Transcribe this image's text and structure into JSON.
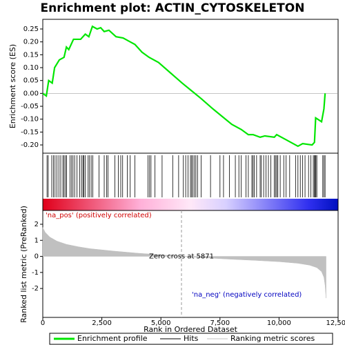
{
  "chart_data": [
    {
      "type": "line",
      "title": "Enrichment plot: ACTIN_CYTOSKELETON",
      "ylabel": "Enrichment score (ES)",
      "xlim": [
        0,
        12500
      ],
      "ylim": [
        -0.232,
        0.2875
      ],
      "yticks": [
        {
          "value": 0.25,
          "label": "0.25"
        },
        {
          "value": 0.2,
          "label": "0.20"
        },
        {
          "value": 0.15,
          "label": "0.15"
        },
        {
          "value": 0.1,
          "label": "0.10"
        },
        {
          "value": 0.05,
          "label": "0.05"
        },
        {
          "value": 0,
          "label": "0.00"
        },
        {
          "value": -0.05,
          "label": "-0.05"
        },
        {
          "value": -0.1,
          "label": "-0.10"
        },
        {
          "value": -0.15,
          "label": "-0.15"
        },
        {
          "value": -0.2,
          "label": "-0.20"
        }
      ],
      "series": [
        {
          "name": "Enrichment profile",
          "color": "#00e600",
          "x": [
            0,
            150,
            250,
            400,
            500,
            700,
            900,
            1000,
            1100,
            1300,
            1600,
            1800,
            1950,
            2100,
            2300,
            2450,
            2600,
            2800,
            3100,
            3400,
            3700,
            3900,
            4200,
            4500,
            4900,
            5400,
            5900,
            6300,
            6700,
            7200,
            7600,
            8000,
            8400,
            8700,
            8900,
            9200,
            9400,
            9800,
            9900,
            10300,
            10500,
            10800,
            11000,
            11400,
            11500,
            11550,
            11800,
            11900,
            11950
          ],
          "values": [
            0,
            -0.01,
            0.05,
            0.04,
            0.1,
            0.13,
            0.14,
            0.18,
            0.17,
            0.21,
            0.21,
            0.23,
            0.22,
            0.26,
            0.25,
            0.255,
            0.24,
            0.245,
            0.22,
            0.215,
            0.2,
            0.19,
            0.16,
            0.14,
            0.12,
            0.08,
            0.04,
            0.01,
            -0.02,
            -0.06,
            -0.09,
            -0.12,
            -0.14,
            -0.16,
            -0.16,
            -0.17,
            -0.165,
            -0.17,
            -0.16,
            -0.18,
            -0.19,
            -0.205,
            -0.195,
            -0.2,
            -0.19,
            -0.095,
            -0.11,
            -0.06,
            0
          ]
        }
      ]
    },
    {
      "type": "hits",
      "xlim": [
        0,
        12500
      ],
      "series": [
        {
          "name": "Hits",
          "color": "#000000",
          "x": [
            180,
            230,
            380,
            450,
            520,
            600,
            680,
            760,
            850,
            900,
            960,
            1010,
            1150,
            1220,
            1280,
            1350,
            1450,
            1560,
            1640,
            1700,
            1740,
            1800,
            1920,
            1980,
            2050,
            2120,
            2380,
            2600,
            2700,
            2760,
            3050,
            3200,
            3300,
            3380,
            3580,
            3700,
            3900,
            4450,
            4520,
            4580,
            4750,
            5050,
            5500,
            5750,
            5950,
            6050,
            6150,
            6250,
            6300,
            6350,
            6420,
            6480,
            6550,
            6700,
            7100,
            7500,
            7650,
            7900,
            8150,
            8300,
            8400,
            8600,
            8700,
            8850,
            8900,
            8950,
            9050,
            9200,
            9250,
            9350,
            9450,
            9550,
            9650,
            9800,
            9850,
            9900,
            9950,
            10050,
            10200,
            10300,
            10450,
            10700,
            10800,
            10900,
            11000,
            11100,
            11250,
            11350,
            11450,
            11500,
            11530,
            11560,
            11600,
            11850,
            11900,
            11950
          ]
        }
      ]
    },
    {
      "type": "area",
      "ylabel": "Ranked list metric (PreRanked)",
      "xlabel": "Rank in Ordered Dataset",
      "xlim": [
        0,
        12500
      ],
      "ylim": [
        -3.8,
        2.86
      ],
      "xticks": [
        {
          "value": 0,
          "label": "0"
        },
        {
          "value": 2500,
          "label": "2,500"
        },
        {
          "value": 5000,
          "label": "5,000"
        },
        {
          "value": 7500,
          "label": "7,500"
        },
        {
          "value": 10000,
          "label": "10,000"
        },
        {
          "value": 12500,
          "label": "12,500"
        }
      ],
      "yticks": [
        2,
        1,
        0,
        -1,
        -2
      ],
      "series": [
        {
          "name": "Ranking metric scores",
          "color": "#c0c0c0",
          "x": [
            0,
            100,
            300,
            600,
            1000,
            1500,
            2000,
            3000,
            4000,
            5000,
            5871,
            7000,
            8000,
            9000,
            10000,
            10800,
            11300,
            11600,
            11800,
            11900,
            11950,
            11990
          ],
          "values": [
            1.8,
            1.5,
            1.2,
            0.95,
            0.75,
            0.6,
            0.48,
            0.33,
            0.2,
            0.1,
            0,
            -0.1,
            -0.18,
            -0.25,
            -0.33,
            -0.43,
            -0.55,
            -0.7,
            -0.95,
            -1.3,
            -1.8,
            -2.6
          ]
        }
      ],
      "zero_cross": 5871,
      "zero_cross_label": "Zero cross at 5871",
      "pos_label": "'na_pos' (positively correlated)",
      "neg_label": "'na_neg' (negatively correlated)"
    }
  ]
}
